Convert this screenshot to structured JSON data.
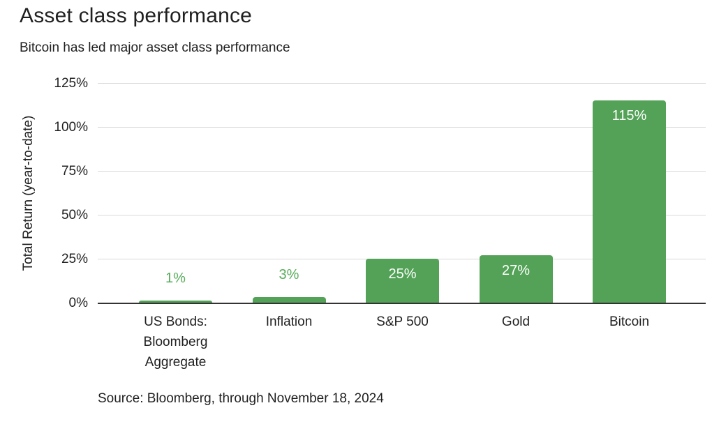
{
  "header": {
    "title": "Asset class performance",
    "subtitle": "Bitcoin has led major asset class performance"
  },
  "chart_data": {
    "type": "bar",
    "title": "Asset class performance",
    "subtitle": "Bitcoin has led major asset class performance",
    "categories": [
      "US Bonds: Bloomberg Aggregate",
      "Inflation",
      "S&P 500",
      "Gold",
      "Bitcoin"
    ],
    "values": [
      1,
      3,
      25,
      27,
      115
    ],
    "value_labels": [
      "1%",
      "3%",
      "25%",
      "27%",
      "115%"
    ],
    "xlabel": "",
    "ylabel": "Total Return (year-to-date)",
    "ylim": [
      0,
      125
    ],
    "ytick_step": 25,
    "ytick_labels": [
      "0%",
      "25%",
      "50%",
      "75%",
      "100%",
      "125%"
    ],
    "grid": "horizontal-only",
    "legend_position": "none",
    "colors": {
      "bar": "#53a257",
      "label_above_bar": "#57ad5b",
      "label_inside_bar": "#ffffff",
      "gridline": "#d9d9d9",
      "axis_line": "#333333",
      "text": "#1f1f1f",
      "background": "#ffffff"
    }
  },
  "footer": {
    "source": "Source: Bloomberg, through November 18, 2024"
  }
}
